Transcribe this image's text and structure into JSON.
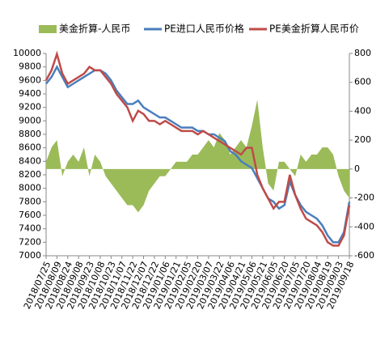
{
  "chart_data": {
    "type": "line",
    "categories": [
      "2018/07/25",
      null,
      "2018/08/09",
      null,
      "2018/08/24",
      null,
      "2018/09/08",
      null,
      "2018/09/23",
      null,
      "2018/10/08",
      null,
      "2018/10/23",
      null,
      "2018/11/07",
      null,
      "2018/11/22",
      null,
      "2018/12/07",
      null,
      "2018/12/22",
      null,
      "2019/01/06",
      null,
      "2019/01/21",
      null,
      "2019/02/05",
      null,
      "2019/02/20",
      null,
      "2019/03/07",
      null,
      "2019/03/22",
      null,
      "2019/04/06",
      null,
      "2019/04/21",
      null,
      "2019/05/06",
      null,
      "2019/05/21",
      null,
      "2019/06/05",
      null,
      "2019/06/20",
      null,
      "2019/07/05",
      null,
      "2019/07/20",
      null,
      "2019/08/04",
      null,
      "2019/08/19",
      null,
      "2019/09/03",
      null,
      "2019/09/18"
    ],
    "series": [
      {
        "name": "美金折算-人民币",
        "type": "area",
        "axis": "y2",
        "color": "#9bbb59",
        "values": [
          50,
          150,
          200,
          -50,
          50,
          100,
          50,
          150,
          -50,
          100,
          50,
          -50,
          -100,
          -150,
          -200,
          -250,
          -250,
          -300,
          -250,
          -150,
          -100,
          -50,
          -50,
          0,
          50,
          50,
          50,
          100,
          100,
          150,
          200,
          150,
          250,
          200,
          100,
          150,
          200,
          150,
          300,
          480,
          150,
          -100,
          -150,
          50,
          50,
          0,
          -50,
          100,
          50,
          100,
          100,
          150,
          150,
          100,
          -50,
          -150,
          -200
        ]
      },
      {
        "name": "PE进口人民币价格",
        "type": "line",
        "color": "#4a7ebb",
        "values": [
          9550,
          9650,
          9800,
          9650,
          9500,
          9550,
          9600,
          9650,
          9700,
          9750,
          9750,
          9700,
          9600,
          9450,
          9350,
          9250,
          9250,
          9300,
          9200,
          9150,
          9100,
          9050,
          9050,
          9000,
          8950,
          8900,
          8900,
          8900,
          8850,
          8850,
          8800,
          8800,
          8750,
          8700,
          8550,
          8500,
          8400,
          8350,
          8300,
          8150,
          8000,
          7850,
          7800,
          7700,
          7750,
          8100,
          7900,
          7750,
          7650,
          7600,
          7550,
          7450,
          7300,
          7200,
          7200,
          7350,
          7800
        ]
      },
      {
        "name": "PE美金折算人民币价",
        "type": "line",
        "color": "#be4b48",
        "values": [
          9600,
          9750,
          9990,
          9700,
          9550,
          9600,
          9650,
          9700,
          9800,
          9750,
          9750,
          9650,
          9550,
          9400,
          9300,
          9200,
          9000,
          9150,
          9100,
          9000,
          9000,
          8950,
          9000,
          8950,
          8900,
          8850,
          8850,
          8850,
          8800,
          8850,
          8800,
          8750,
          8700,
          8650,
          8600,
          8550,
          8500,
          8600,
          8600,
          8200,
          8000,
          7850,
          7700,
          7800,
          7800,
          8200,
          7900,
          7700,
          7550,
          7500,
          7450,
          7350,
          7200,
          7150,
          7150,
          7300,
          7750
        ]
      }
    ],
    "ylim": [
      7000,
      10000
    ],
    "yticks": [
      7000,
      7200,
      7400,
      7600,
      7800,
      8000,
      8200,
      8400,
      8600,
      8800,
      9000,
      9200,
      9400,
      9600,
      9800,
      10000
    ],
    "y2lim": [
      -600,
      800
    ],
    "y2ticks": [
      -600,
      -400,
      -200,
      0,
      200,
      400,
      600,
      800
    ],
    "legend": "top",
    "grid": false
  }
}
